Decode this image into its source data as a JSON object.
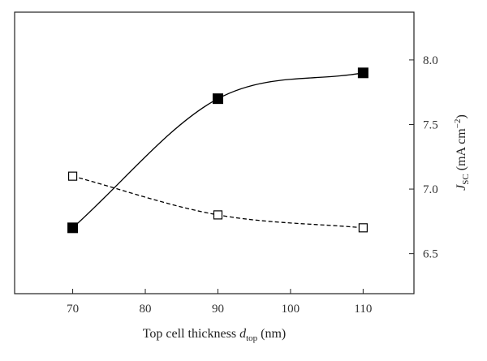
{
  "chart_data": {
    "type": "line",
    "x": [
      70,
      90,
      110
    ],
    "xlim": [
      62,
      117
    ],
    "ylim": [
      6.19,
      8.37
    ],
    "xticks": [
      70,
      80,
      90,
      100,
      110
    ],
    "yticks": [
      6.5,
      7.0,
      7.5,
      8.0
    ],
    "xtick_labels": [
      "70",
      "80",
      "90",
      "100",
      "110"
    ],
    "ytick_labels": [
      "6.5",
      "7.0",
      "7.5",
      "8.0"
    ],
    "xlabel": {
      "main": "Top cell thickness ",
      "var": "d",
      "sub": "top",
      "unit": " (nm)"
    },
    "ylabel": {
      "var": "J",
      "sub": "SC",
      "unit_pre": " (mA cm",
      "sup": "−2",
      "unit_post": ")"
    },
    "y_axis_side": "right",
    "grid": false,
    "series": [
      {
        "values": [
          6.7,
          7.7,
          7.9
        ],
        "marker": "filled-square",
        "line": "solid",
        "color": "#000000"
      },
      {
        "values": [
          7.1,
          6.8,
          6.7
        ],
        "marker": "open-square",
        "line": "dashed",
        "color": "#000000"
      }
    ]
  }
}
